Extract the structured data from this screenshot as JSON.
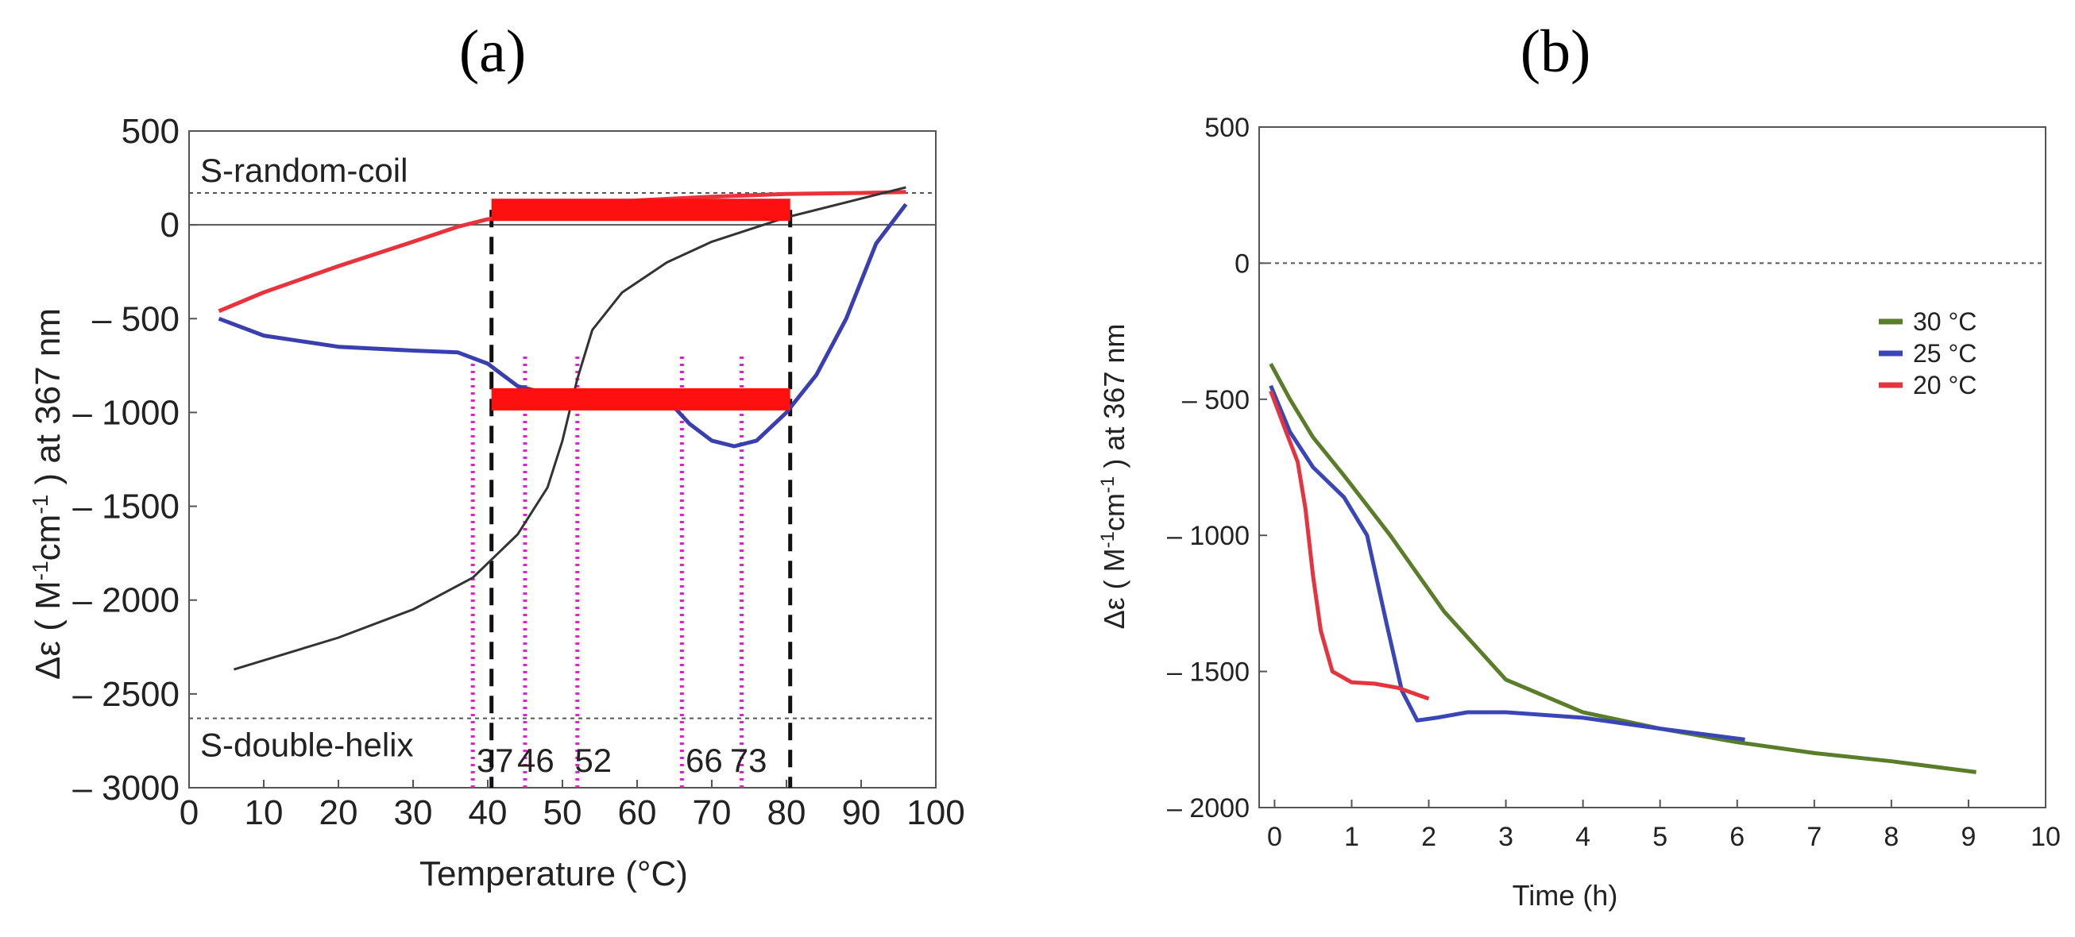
{
  "chart_data": [
    {
      "panel_label": "(a)",
      "type": "line",
      "xlabel": "Temperature (°C)",
      "ylabel_prefix": "Δε ( M",
      "ylabel_sup1": "-1",
      "ylabel_mid": "cm",
      "ylabel_sup2": "-1",
      "ylabel_suffix": " ) at 367 nm",
      "xlim": [
        0,
        100
      ],
      "ylim": [
        -3000,
        500
      ],
      "xticks": [
        0,
        10,
        20,
        30,
        40,
        50,
        60,
        70,
        80,
        90,
        100
      ],
      "yticks": [
        500,
        0,
        -500,
        -1000,
        -1500,
        -2000,
        -2500,
        -3000
      ],
      "ytick_labels": [
        "500",
        "0",
        "– 500",
        "– 1000",
        "– 1500",
        "– 2000",
        "– 2500",
        "– 3000"
      ],
      "grid": false,
      "reference_lines": [
        {
          "label": "S-random-coil",
          "y": 170,
          "style": "dotted"
        },
        {
          "label": "S-double-helix",
          "y": -2630,
          "style": "dotted"
        }
      ],
      "zero_line": 0,
      "vertical_markers": [
        {
          "label": "37",
          "x": 38,
          "style": "dotted-magenta"
        },
        {
          "label": "46",
          "x": 45,
          "style": "dotted-magenta"
        },
        {
          "label": "52",
          "x": 52,
          "style": "dotted-magenta"
        },
        {
          "label": "66",
          "x": 66,
          "style": "dotted-magenta"
        },
        {
          "label": "73",
          "x": 74,
          "style": "dotted-magenta"
        }
      ],
      "bounds": [
        40.5,
        80.5
      ],
      "bars": [
        {
          "x_start": 40.5,
          "x_end": 80.5,
          "y": 80
        },
        {
          "x_start": 40.5,
          "x_end": 80.5,
          "y": -930
        }
      ],
      "series": [
        {
          "color": "#e8323c",
          "x": [
            4,
            10,
            20,
            30,
            36,
            40,
            50,
            60,
            70,
            80,
            90,
            96
          ],
          "y": [
            -460,
            -360,
            -220,
            -90,
            -10,
            30,
            90,
            130,
            150,
            165,
            170,
            175
          ]
        },
        {
          "color": "#3a3fb0",
          "x": [
            4,
            10,
            20,
            30,
            36,
            40,
            44,
            48,
            52,
            58,
            64,
            67,
            70,
            73,
            76,
            80,
            84,
            88,
            92,
            96
          ],
          "y": [
            -500,
            -590,
            -650,
            -670,
            -680,
            -740,
            -860,
            -900,
            -920,
            -930,
            -930,
            -1060,
            -1150,
            -1180,
            -1150,
            -1000,
            -800,
            -500,
            -100,
            110
          ]
        },
        {
          "color": "#333333",
          "x": [
            6,
            20,
            30,
            38,
            44,
            48,
            50,
            52,
            54,
            58,
            64,
            70,
            80,
            90,
            96
          ],
          "y": [
            -2370,
            -2200,
            -2050,
            -1880,
            -1650,
            -1400,
            -1150,
            -820,
            -560,
            -360,
            -200,
            -90,
            40,
            140,
            200
          ]
        }
      ]
    },
    {
      "panel_label": "(b)",
      "type": "line",
      "xlabel": "Time (h)",
      "ylabel_prefix": "Δε ( M",
      "ylabel_sup1": "-1",
      "ylabel_mid": "cm",
      "ylabel_sup2": "-1",
      "ylabel_suffix": " ) at 367 nm",
      "xlim": [
        -0.2,
        10
      ],
      "ylim": [
        -2000,
        500
      ],
      "xticks": [
        0,
        1,
        2,
        3,
        4,
        5,
        6,
        7,
        8,
        9,
        10
      ],
      "yticks": [
        500,
        0,
        -500,
        -1000,
        -1500,
        -2000
      ],
      "ytick_labels": [
        "500",
        "0",
        "– 500",
        "– 1000",
        "– 1500",
        "– 2000"
      ],
      "grid": false,
      "zero_line": 0,
      "legend_position": "right",
      "series": [
        {
          "name": "30 °C",
          "color": "#5a7d2a",
          "x": [
            -0.05,
            0.2,
            0.5,
            0.9,
            1.5,
            2.2,
            3,
            4,
            5,
            6,
            7,
            8,
            9.1
          ],
          "y": [
            -370,
            -500,
            -640,
            -780,
            -1000,
            -1280,
            -1530,
            -1650,
            -1710,
            -1760,
            -1800,
            -1830,
            -1870
          ]
        },
        {
          "name": "25 °C",
          "color": "#3a45b8",
          "x": [
            -0.05,
            0.2,
            0.5,
            0.9,
            1.2,
            1.45,
            1.65,
            1.85,
            2.1,
            2.5,
            3,
            4,
            5,
            6.1
          ],
          "y": [
            -450,
            -620,
            -750,
            -860,
            -1000,
            -1320,
            -1570,
            -1680,
            -1670,
            -1650,
            -1650,
            -1670,
            -1710,
            -1750
          ]
        },
        {
          "name": "20 °C",
          "color": "#e3343f",
          "x": [
            -0.05,
            0.15,
            0.3,
            0.4,
            0.5,
            0.6,
            0.75,
            1,
            1.3,
            1.6,
            2
          ],
          "y": [
            -470,
            -620,
            -730,
            -900,
            -1150,
            -1350,
            -1500,
            -1540,
            -1545,
            -1560,
            -1600
          ]
        }
      ]
    }
  ]
}
